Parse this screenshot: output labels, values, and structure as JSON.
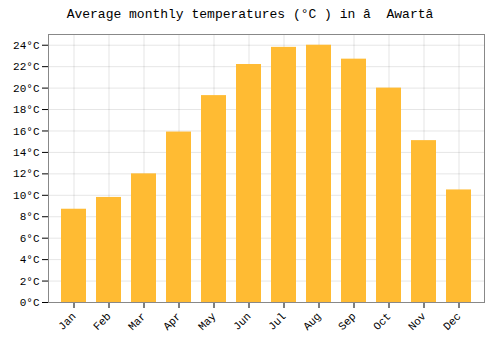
{
  "chart_data": {
    "type": "bar",
    "title": "Average monthly temperatures (°C ) in â  Awartâ",
    "categories": [
      "Jan",
      "Feb",
      "Mar",
      "Apr",
      "May",
      "Jun",
      "Jul",
      "Aug",
      "Sep",
      "Oct",
      "Nov",
      "Dec"
    ],
    "values": [
      8.7,
      9.8,
      12.0,
      15.9,
      19.3,
      22.2,
      23.8,
      24.0,
      22.7,
      20.0,
      15.1,
      10.5
    ],
    "color": "#FFBB33",
    "ylim": [
      0,
      25
    ],
    "yticks": [
      {
        "value": 0,
        "label": "0°C"
      },
      {
        "value": 2,
        "label": "2°C"
      },
      {
        "value": 4,
        "label": "4°C"
      },
      {
        "value": 6,
        "label": "6°C"
      },
      {
        "value": 8,
        "label": "8°C"
      },
      {
        "value": 10,
        "label": "10°C"
      },
      {
        "value": 12,
        "label": "12°C"
      },
      {
        "value": 14,
        "label": "14°C"
      },
      {
        "value": 16,
        "label": "16°C"
      },
      {
        "value": 18,
        "label": "18°C"
      },
      {
        "value": 20,
        "label": "20°C"
      },
      {
        "value": 22,
        "label": "22°C"
      },
      {
        "value": 24,
        "label": "24°C"
      }
    ],
    "grid": true
  }
}
